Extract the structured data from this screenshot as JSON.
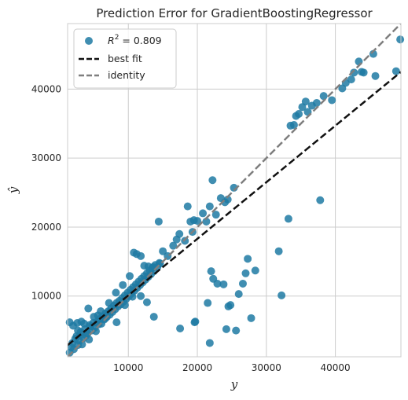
{
  "chart_data": {
    "type": "scatter",
    "title": "Prediction Error for GradientBoostingRegressor",
    "xlabel": "y",
    "ylabel": "ŷ",
    "xlim": [
      1200,
      49500
    ],
    "ylim": [
      1200,
      49500
    ],
    "x_ticks": [
      10000,
      20000,
      30000,
      40000
    ],
    "y_ticks": [
      10000,
      20000,
      30000,
      40000
    ],
    "grid": true,
    "legend_position": "top-left",
    "legend": [
      {
        "label": "R² = 0.809",
        "kind": "marker",
        "prefix": "R",
        "sup": "2",
        "rest": " = 0.809"
      },
      {
        "label": "best fit",
        "kind": "line"
      },
      {
        "label": "identity",
        "kind": "line"
      }
    ],
    "colors": {
      "points": "#1f7aa3",
      "best_fit": "#111111",
      "identity": "#7f7f7f",
      "grid": "#cccccc",
      "frame": "#cccccc"
    },
    "best_fit": {
      "slope": 0.82,
      "intercept": 1900
    },
    "series": [
      {
        "name": "",
        "points": [
          [
            1500,
            1800
          ],
          [
            1700,
            2600
          ],
          [
            1900,
            3200
          ],
          [
            2100,
            2300
          ],
          [
            2300,
            3800
          ],
          [
            2500,
            4200
          ],
          [
            2700,
            2900
          ],
          [
            2900,
            3500
          ],
          [
            3100,
            4800
          ],
          [
            3300,
            3000
          ],
          [
            3500,
            3900
          ],
          [
            3700,
            5200
          ],
          [
            3900,
            4300
          ],
          [
            4100,
            4600
          ],
          [
            4300,
            3700
          ],
          [
            4500,
            5600
          ],
          [
            4700,
            5000
          ],
          [
            4900,
            6100
          ],
          [
            5100,
            5400
          ],
          [
            5300,
            4900
          ],
          [
            5500,
            6300
          ],
          [
            5700,
            5900
          ],
          [
            5900,
            6700
          ],
          [
            6100,
            6000
          ],
          [
            6300,
            7100
          ],
          [
            6500,
            6600
          ],
          [
            6700,
            7500
          ],
          [
            6900,
            7000
          ],
          [
            7100,
            7800
          ],
          [
            7300,
            7300
          ],
          [
            7500,
            8200
          ],
          [
            7700,
            7700
          ],
          [
            7900,
            8600
          ],
          [
            8100,
            8100
          ],
          [
            8300,
            9000
          ],
          [
            8500,
            8500
          ],
          [
            8700,
            9300
          ],
          [
            8900,
            8800
          ],
          [
            9100,
            9700
          ],
          [
            9300,
            9200
          ],
          [
            9500,
            10100
          ],
          [
            9700,
            9600
          ],
          [
            9900,
            10500
          ],
          [
            10100,
            10000
          ],
          [
            10300,
            10900
          ],
          [
            10500,
            10400
          ],
          [
            10700,
            11300
          ],
          [
            10900,
            10800
          ],
          [
            11100,
            11700
          ],
          [
            11300,
            11200
          ],
          [
            11500,
            12100
          ],
          [
            11700,
            11600
          ],
          [
            11900,
            12500
          ],
          [
            12100,
            12000
          ],
          [
            12300,
            12900
          ],
          [
            12500,
            12400
          ],
          [
            12700,
            13300
          ],
          [
            12900,
            12800
          ],
          [
            13100,
            13700
          ],
          [
            13300,
            13200
          ],
          [
            13500,
            14100
          ],
          [
            13700,
            13600
          ],
          [
            13900,
            14500
          ],
          [
            14200,
            14200
          ],
          [
            14500,
            14800
          ],
          [
            2000,
            5700
          ],
          [
            2600,
            6100
          ],
          [
            1500,
            6200
          ],
          [
            3200,
            6300
          ],
          [
            4200,
            8200
          ],
          [
            5000,
            7000
          ],
          [
            6000,
            7800
          ],
          [
            7200,
            9000
          ],
          [
            8200,
            10500
          ],
          [
            9200,
            11600
          ],
          [
            10200,
            12900
          ],
          [
            10800,
            16300
          ],
          [
            11200,
            16100
          ],
          [
            11800,
            15800
          ],
          [
            12300,
            14400
          ],
          [
            12900,
            14300
          ],
          [
            13600,
            14200
          ],
          [
            14600,
            14700
          ],
          [
            9500,
            8700
          ],
          [
            10600,
            9900
          ],
          [
            11800,
            10000
          ],
          [
            12700,
            9100
          ],
          [
            13700,
            7000
          ],
          [
            8300,
            6200
          ],
          [
            6700,
            6800
          ],
          [
            5600,
            7200
          ],
          [
            4400,
            5800
          ],
          [
            3600,
            6000
          ],
          [
            3000,
            4300
          ],
          [
            2700,
            5000
          ],
          [
            14400,
            20800
          ],
          [
            15000,
            16500
          ],
          [
            15700,
            15800
          ],
          [
            16500,
            17300
          ],
          [
            17000,
            18200
          ],
          [
            17400,
            19000
          ],
          [
            18200,
            18000
          ],
          [
            18600,
            23000
          ],
          [
            19000,
            20800
          ],
          [
            19300,
            19300
          ],
          [
            19500,
            21000
          ],
          [
            20000,
            20900
          ],
          [
            20800,
            22000
          ],
          [
            21300,
            20800
          ],
          [
            21800,
            23000
          ],
          [
            22200,
            26800
          ],
          [
            22700,
            21800
          ],
          [
            23400,
            24200
          ],
          [
            24000,
            23600
          ],
          [
            24400,
            24000
          ],
          [
            25300,
            25700
          ],
          [
            17500,
            5300
          ],
          [
            19600,
            6200
          ],
          [
            19700,
            6300
          ],
          [
            21500,
            9000
          ],
          [
            21800,
            3200
          ],
          [
            22000,
            13600
          ],
          [
            22300,
            12500
          ],
          [
            22900,
            11800
          ],
          [
            23800,
            11700
          ],
          [
            24200,
            5200
          ],
          [
            24500,
            8500
          ],
          [
            24800,
            8700
          ],
          [
            25600,
            5000
          ],
          [
            26000,
            10300
          ],
          [
            26600,
            11800
          ],
          [
            27000,
            13300
          ],
          [
            27300,
            15400
          ],
          [
            27800,
            6800
          ],
          [
            28400,
            13700
          ],
          [
            31800,
            16500
          ],
          [
            32200,
            10100
          ],
          [
            33200,
            21200
          ],
          [
            37800,
            23900
          ],
          [
            33500,
            34700
          ],
          [
            34000,
            34800
          ],
          [
            34300,
            36100
          ],
          [
            34700,
            36400
          ],
          [
            35200,
            37400
          ],
          [
            35700,
            38200
          ],
          [
            36000,
            36700
          ],
          [
            36600,
            37600
          ],
          [
            37300,
            38000
          ],
          [
            38300,
            39000
          ],
          [
            39500,
            38400
          ],
          [
            41000,
            40100
          ],
          [
            41500,
            40900
          ],
          [
            42300,
            41400
          ],
          [
            42700,
            42400
          ],
          [
            43400,
            44000
          ],
          [
            43800,
            42500
          ],
          [
            44100,
            42400
          ],
          [
            45500,
            45100
          ],
          [
            45800,
            41900
          ],
          [
            48800,
            42600
          ],
          [
            49400,
            47200
          ]
        ]
      }
    ]
  }
}
